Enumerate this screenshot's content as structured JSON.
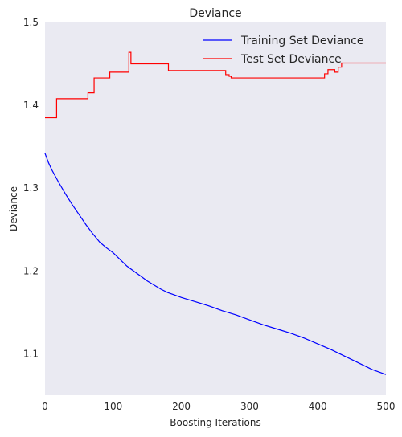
{
  "chart_data": {
    "type": "line",
    "title": "Deviance",
    "xlabel": "Boosting Iterations",
    "ylabel": "Deviance",
    "xlim": [
      0,
      500
    ],
    "ylim": [
      1.05,
      1.5
    ],
    "xticks": [
      0,
      100,
      200,
      300,
      400,
      500
    ],
    "yticks": [
      1.1,
      1.2,
      1.3,
      1.4,
      1.5
    ],
    "xtick_labels": [
      "0",
      "100",
      "200",
      "300",
      "400",
      "500"
    ],
    "ytick_labels": [
      "1.1",
      "1.2",
      "1.3",
      "1.4",
      "1.5"
    ],
    "grid": false,
    "legend_position": "top-right",
    "series": [
      {
        "name": "Training Set Deviance",
        "color": "#0000ff",
        "x": [
          0,
          5,
          10,
          20,
          30,
          40,
          50,
          60,
          70,
          80,
          90,
          100,
          110,
          120,
          130,
          140,
          150,
          160,
          170,
          180,
          190,
          200,
          220,
          240,
          260,
          280,
          300,
          320,
          340,
          360,
          380,
          400,
          420,
          440,
          460,
          480,
          500
        ],
        "values": [
          1.342,
          1.331,
          1.322,
          1.307,
          1.293,
          1.28,
          1.268,
          1.256,
          1.245,
          1.235,
          1.228,
          1.222,
          1.214,
          1.206,
          1.2,
          1.194,
          1.188,
          1.183,
          1.178,
          1.174,
          1.171,
          1.168,
          1.163,
          1.158,
          1.152,
          1.147,
          1.141,
          1.135,
          1.13,
          1.125,
          1.119,
          1.112,
          1.105,
          1.097,
          1.089,
          1.081,
          1.075
        ]
      },
      {
        "name": "Test Set Deviance",
        "color": "#ff0000",
        "x": [
          0,
          17,
          17,
          63,
          63,
          72,
          72,
          95,
          95,
          123,
          123,
          126,
          126,
          181,
          181,
          265,
          265,
          270,
          270,
          273,
          273,
          410,
          410,
          415,
          415,
          425,
          425,
          430,
          430,
          435,
          435,
          500
        ],
        "values": [
          1.385,
          1.385,
          1.408,
          1.408,
          1.415,
          1.415,
          1.433,
          1.433,
          1.44,
          1.44,
          1.464,
          1.464,
          1.45,
          1.45,
          1.442,
          1.442,
          1.437,
          1.437,
          1.435,
          1.435,
          1.433,
          1.433,
          1.438,
          1.438,
          1.443,
          1.443,
          1.44,
          1.44,
          1.446,
          1.446,
          1.451,
          1.451
        ]
      }
    ]
  }
}
